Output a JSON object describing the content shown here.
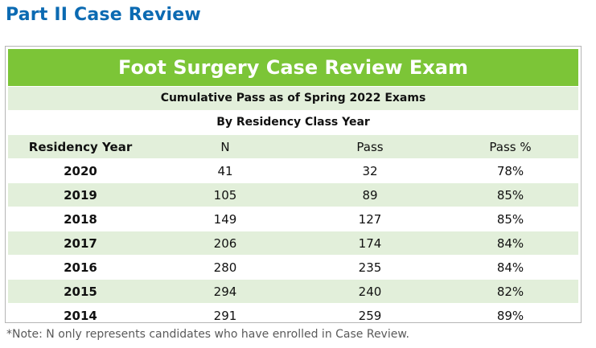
{
  "section": {
    "heading": "Part II Case Review"
  },
  "table": {
    "title": "Foot Surgery Case Review Exam",
    "subtitle": "Cumulative Pass as of Spring 2022 Exams",
    "byline": "By Residency Class Year",
    "headers": [
      "Residency Year",
      "N",
      "Pass",
      "Pass %"
    ],
    "rows": [
      {
        "year": "2020",
        "n": "41",
        "pass": "32",
        "pass_pct": "78%"
      },
      {
        "year": "2019",
        "n": "105",
        "pass": "89",
        "pass_pct": "85%"
      },
      {
        "year": "2018",
        "n": "149",
        "pass": "127",
        "pass_pct": "85%"
      },
      {
        "year": "2017",
        "n": "206",
        "pass": "174",
        "pass_pct": "84%"
      },
      {
        "year": "2016",
        "n": "280",
        "pass": "235",
        "pass_pct": "84%"
      },
      {
        "year": "2015",
        "n": "294",
        "pass": "240",
        "pass_pct": "82%"
      },
      {
        "year": "2014",
        "n": "291",
        "pass": "259",
        "pass_pct": "89%"
      }
    ]
  },
  "footnote": "*Note: N only represents candidates who have enrolled in Case Review.",
  "colors": {
    "heading": "#0b6ab2",
    "title_band": "#7cc537",
    "band_light_green": "#e2efda"
  }
}
